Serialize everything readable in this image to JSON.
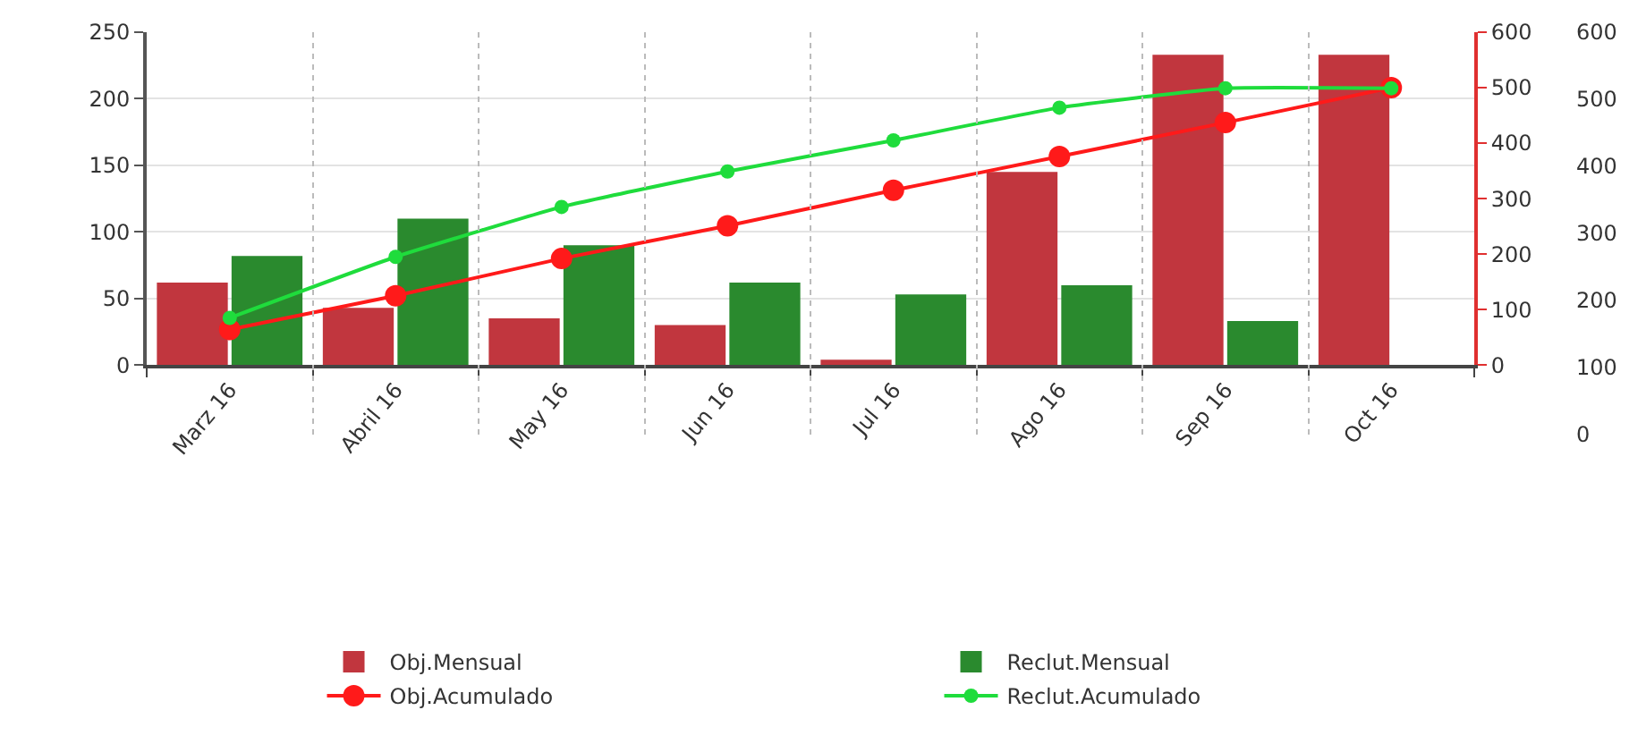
{
  "chart_data": {
    "type": "bar",
    "categories": [
      "Marz 16",
      "Abril 16",
      "May 16",
      "Jun 16",
      "Jul 16",
      "Ago 16",
      "Sep 16",
      "Oct 16"
    ],
    "series": [
      {
        "name": "Obj.Mensual",
        "color": "#c1363e",
        "values": [
          62,
          43,
          35,
          30,
          4,
          145,
          233,
          233
        ]
      },
      {
        "name": "Reclut.Mensual",
        "color": "#2a8a2e",
        "values": [
          82,
          110,
          90,
          62,
          53,
          60,
          33,
          0
        ]
      },
      {
        "name": "Obj.Acumulado",
        "type": "line",
        "axis": "y2",
        "color": "#ff1a1a",
        "values": [
          64,
          125,
          192,
          251,
          315,
          376,
          437,
          500
        ]
      },
      {
        "name": "Reclut.Acumulado",
        "type": "line",
        "axis": "y2",
        "color": "#1fdc3c",
        "values": [
          85,
          195,
          285,
          349,
          405,
          464,
          499,
          499
        ]
      }
    ],
    "ylim": [
      0,
      250
    ],
    "yticks": [
      0,
      50,
      100,
      150,
      200,
      250
    ],
    "y2lim": [
      0,
      600
    ],
    "y2ticks": [
      0,
      100,
      200,
      300,
      400,
      500,
      600
    ],
    "y3lim": [
      0,
      600
    ],
    "y3ticks": [
      0,
      100,
      200,
      300,
      400,
      500,
      600
    ],
    "grid": true,
    "legend": "bottom",
    "marker": "circle",
    "line_style": "solid"
  }
}
